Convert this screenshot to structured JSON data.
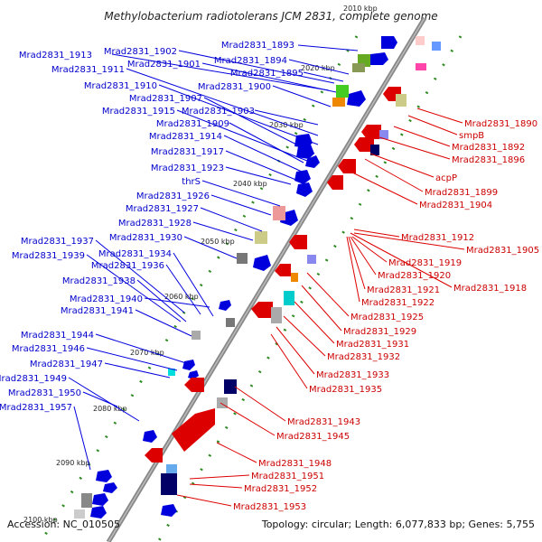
{
  "title": "Methylobacterium radiotolerans JCM 2831, complete genome",
  "accession": "Accession: NC_010505",
  "topology": "Topology: circular; Length: 6,077,833 bp; Genes: 5,755",
  "colors": {
    "fwd": "#0000dd",
    "rev": "#dd0000",
    "backbone": "#888888",
    "dots": "#2e8b22"
  },
  "ticks": [
    "2010 kbp",
    "2020 kbp",
    "2030 kbp",
    "2040 kbp",
    "2050 kbp",
    "2060 kbp",
    "2070 kbp",
    "2080 kbp",
    "2090 kbp",
    "2100 kbp"
  ],
  "left_labels": [
    "Mrad2831_1893",
    "Mrad2831_1902",
    "Mrad2831_1913",
    "Mrad2831_1894",
    "Mrad2831_1901",
    "Mrad2831_1911",
    "Mrad2831_1895",
    "Mrad2831_1910",
    "Mrad2831_1900",
    "Mrad2831_1907",
    "Mrad2831_1915",
    "Mrad2831_1903",
    "Mrad2831_1909",
    "Mrad2831_1914",
    "Mrad2831_1917",
    "Mrad2831_1923",
    "thrS",
    "Mrad2831_1926",
    "Mrad2831_1927",
    "Mrad2831_1928",
    "Mrad2831_1930",
    "Mrad2831_1937",
    "Mrad2831_1934",
    "Mrad2831_1939",
    "Mrad2831_1936",
    "Mrad2831_1938",
    "Mrad2831_1940",
    "Mrad2831_1941",
    "Mrad2831_1944",
    "Mrad2831_1946",
    "Mrad2831_1947",
    "Mrad2831_1949",
    "Mrad2831_1950",
    "Mrad2831_1957"
  ],
  "right_labels": [
    "Mrad2831_1890",
    "smpB",
    "Mrad2831_1892",
    "Mrad2831_1896",
    "acpP",
    "Mrad2831_1899",
    "Mrad2831_1904",
    "Mrad2831_1912",
    "Mrad2831_1905",
    "Mrad2831_1919",
    "Mrad2831_1920",
    "Mrad2831_1918",
    "Mrad2831_1921",
    "Mrad2831_1922",
    "Mrad2831_1925",
    "Mrad2831_1929",
    "Mrad2831_1931",
    "Mrad2831_1932",
    "Mrad2831_1933",
    "Mrad2831_1935",
    "Mrad2831_1943",
    "Mrad2831_1945",
    "Mrad2831_1948",
    "Mrad2831_1951",
    "Mrad2831_1952",
    "Mrad2831_1953"
  ]
}
